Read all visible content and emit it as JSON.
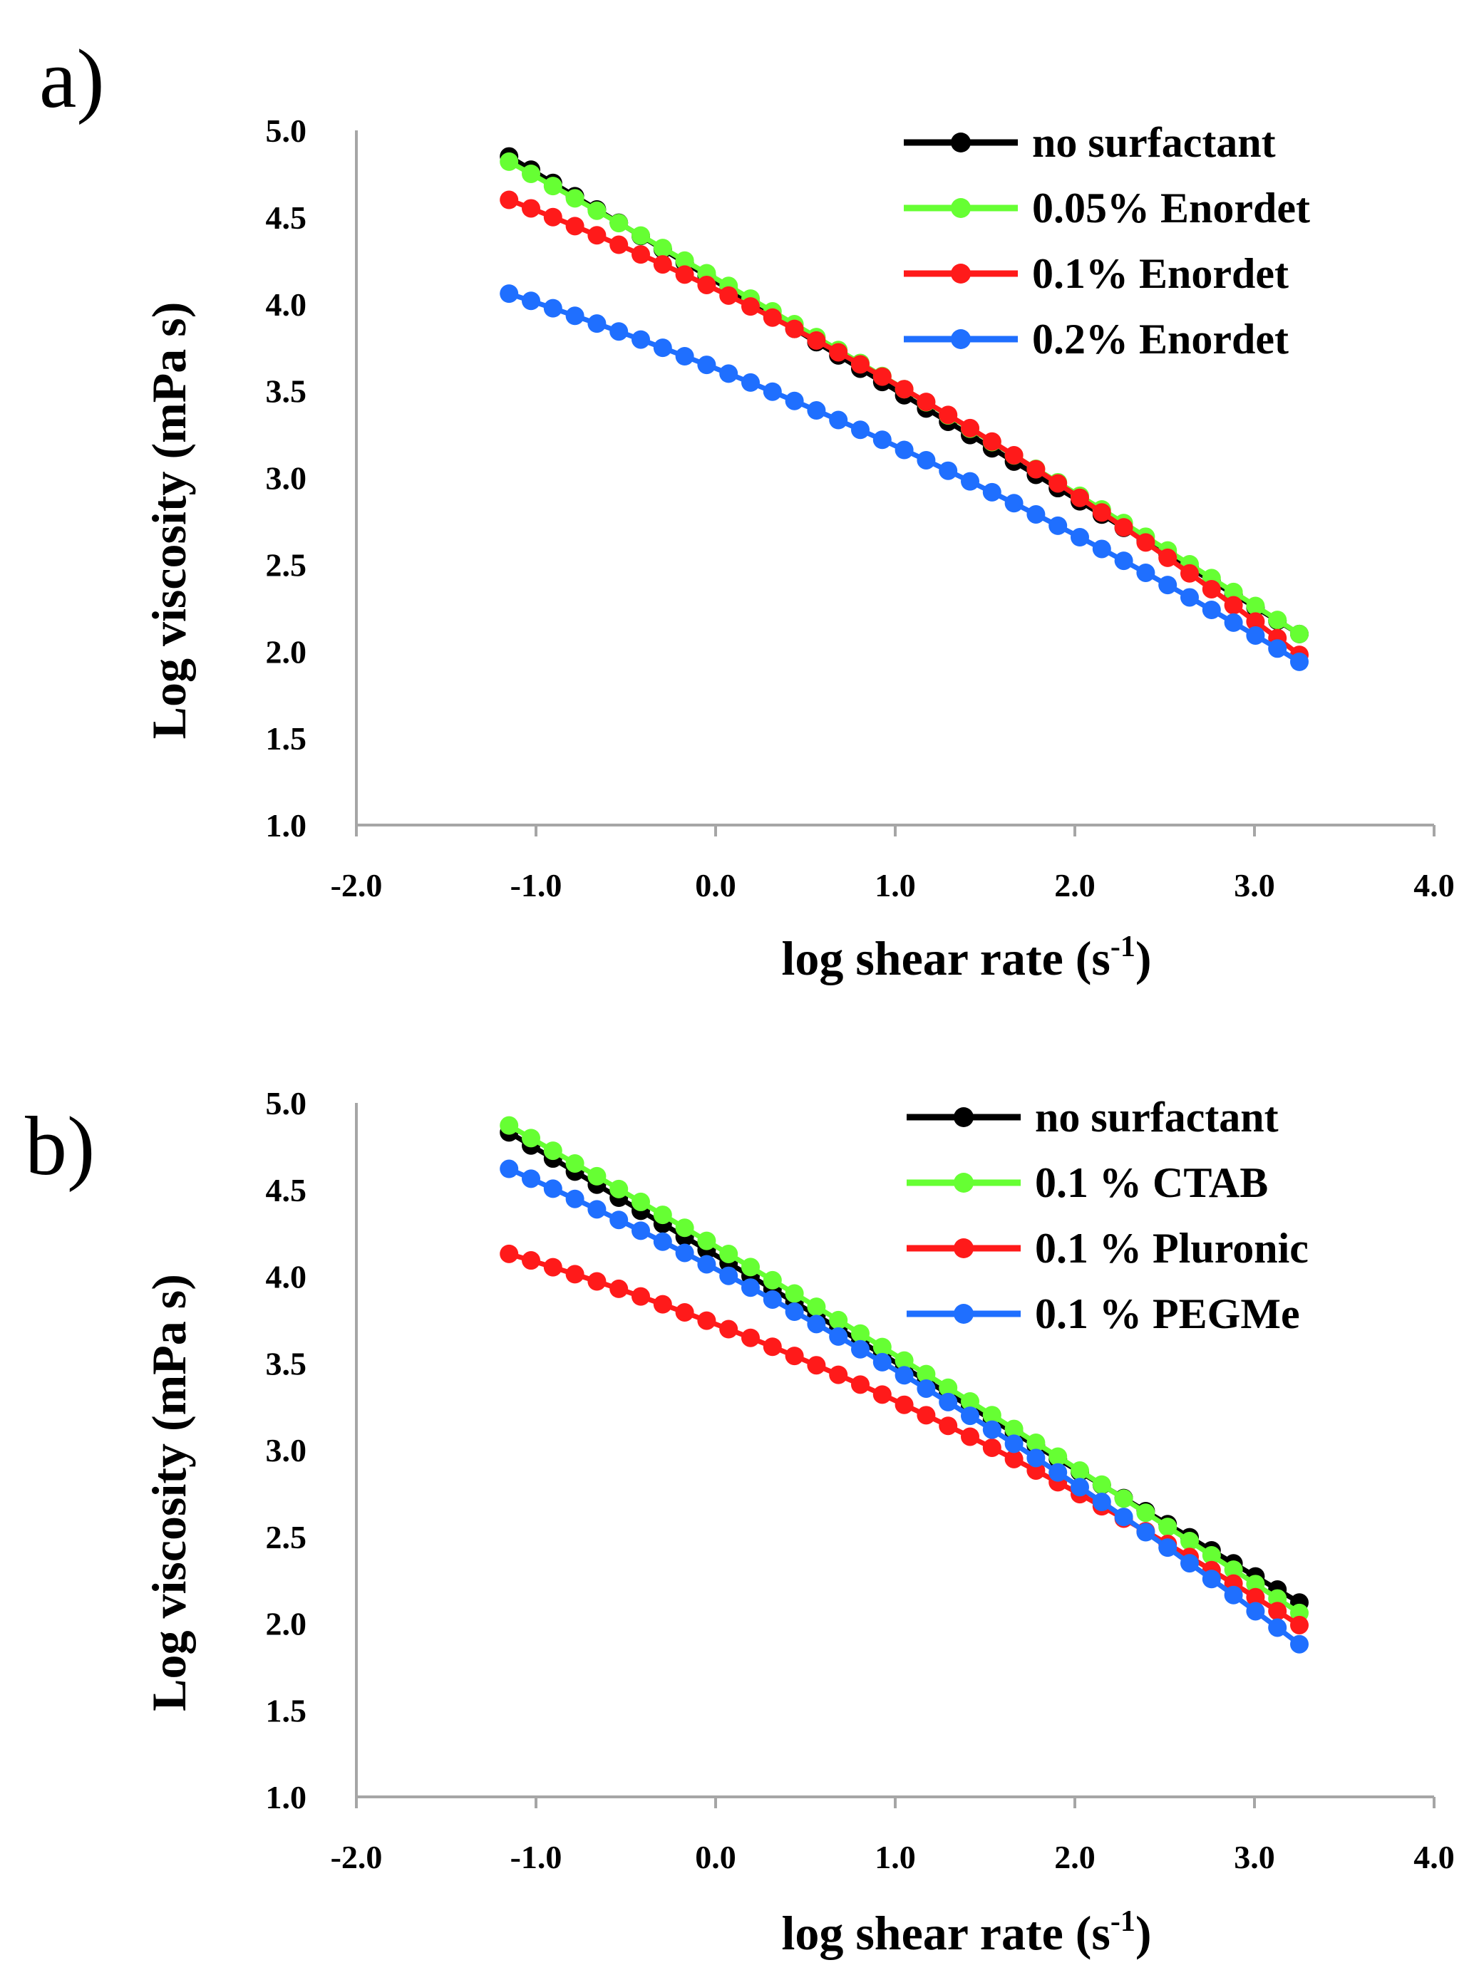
{
  "chart_data": [
    {
      "panel_label": "a)",
      "type": "line",
      "xlabel": "log shear rate (s",
      "xlabel_sup": "-1",
      "xlabel_close": ")",
      "ylabel": "Log viscosity (mPa s)",
      "xlim": [
        -2.0,
        4.0
      ],
      "ylim": [
        1.0,
        5.0
      ],
      "xticks": [
        "-2.0",
        "-1.0",
        "0.0",
        "1.0",
        "2.0",
        "3.0",
        "4.0"
      ],
      "yticks": [
        "1.0",
        "1.5",
        "2.0",
        "2.5",
        "3.0",
        "3.5",
        "4.0",
        "4.5",
        "5.0"
      ],
      "x_range": [
        -1.15,
        3.25
      ],
      "points": 37,
      "legend_position": "top-right",
      "series": [
        {
          "name": "no surfactant",
          "color": "#000000",
          "y_start": 4.85,
          "y_end": 2.1,
          "curvature": 0.0
        },
        {
          "name": "0.05% Enordet",
          "color": "#66ff33",
          "y_start": 4.82,
          "y_end": 2.1,
          "curvature": 0.05
        },
        {
          "name": "0.1% Enordet",
          "color": "#ff1a1a",
          "y_start": 4.6,
          "y_end": 1.98,
          "curvature": 0.22
        },
        {
          "name": "0.2% Enordet",
          "color": "#1f6fff",
          "y_start": 4.06,
          "y_end": 1.94,
          "curvature": 0.16
        }
      ]
    },
    {
      "panel_label": "b)",
      "type": "line",
      "xlabel": "log shear rate (s",
      "xlabel_sup": "-1",
      "xlabel_close": ")",
      "ylabel": "Log viscosity (mPa s)",
      "xlim": [
        -2.0,
        4.0
      ],
      "ylim": [
        1.0,
        5.0
      ],
      "xticks": [
        "-2.0",
        "-1.0",
        "0.0",
        "1.0",
        "2.0",
        "3.0",
        "4.0"
      ],
      "yticks": [
        "1.0",
        "1.5",
        "2.0",
        "2.5",
        "3.0",
        "3.5",
        "4.0",
        "4.5",
        "5.0"
      ],
      "x_range": [
        -1.15,
        3.25
      ],
      "points": 37,
      "legend_position": "top-right",
      "series": [
        {
          "name": "no surfactant",
          "color": "#000000",
          "y_start": 4.83,
          "y_end": 2.12,
          "curvature": 0.0
        },
        {
          "name": "0.1 % CTAB",
          "color": "#66ff33",
          "y_start": 4.87,
          "y_end": 2.06,
          "curvature": 0.05
        },
        {
          "name": "0.1 % Pluronic",
          "color": "#ff1a1a",
          "y_start": 4.13,
          "y_end": 1.99,
          "curvature": 0.2
        },
        {
          "name": "0.1 % PEGMe",
          "color": "#1f6fff",
          "y_start": 4.62,
          "y_end": 1.88,
          "curvature": 0.18
        }
      ]
    }
  ]
}
